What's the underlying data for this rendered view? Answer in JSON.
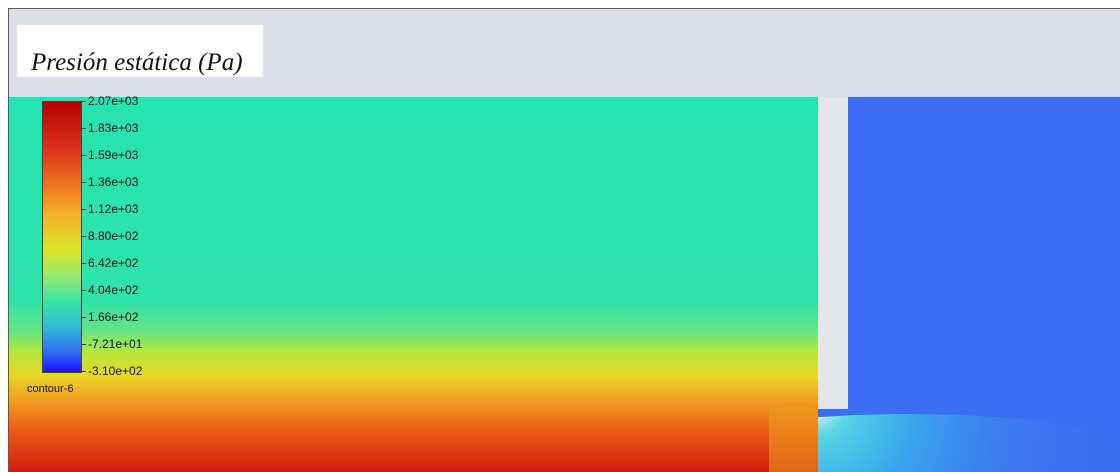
{
  "title": "Presión estática (Pa)",
  "colorbar": {
    "name": "contour-6",
    "tick_labels": [
      "2.07e+03",
      "1.83e+03",
      "1.59e+03",
      "1.36e+03",
      "1.12e+03",
      "8.80e+02",
      "6.42e+02",
      "4.04e+02",
      "1.66e+02",
      "-7.21e+01",
      "-3.10e+02"
    ],
    "gradient_colors": [
      "#b40000",
      "#e0341c",
      "#f07a1e",
      "#f5b328",
      "#d9e62a",
      "#9ee86a",
      "#35e4a8",
      "#2fb9d8",
      "#2d6af0",
      "#1a12ff"
    ]
  },
  "colors": {
    "background": "#dcdee7",
    "upstream_region": "#25e3b2",
    "downstream_region": "#3d6df2",
    "high_pressure": "#d21e10"
  }
}
